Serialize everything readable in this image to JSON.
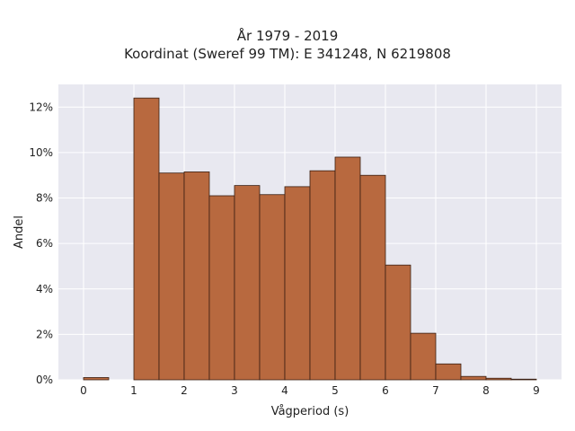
{
  "chart_data": {
    "type": "bar",
    "title": "År 1979 - 2019",
    "subtitle": "Koordinat (Sweref 99 TM): E 341248, N 6219808",
    "xlabel": "Vågperiod (s)",
    "ylabel": "Andel",
    "bin_width": 0.5,
    "bins_start": [
      0,
      0.5,
      1,
      1.5,
      2,
      2.5,
      3,
      3.5,
      4,
      4.5,
      5,
      5.5,
      6,
      6.5,
      7,
      7.5,
      8,
      8.5
    ],
    "values": [
      0.1,
      0,
      12.4,
      9.1,
      9.15,
      8.1,
      8.55,
      8.15,
      8.5,
      9.2,
      9.8,
      9.0,
      5.05,
      2.05,
      0.7,
      0.15,
      0.07,
      0.03
    ],
    "xlim": [
      -0.5,
      9.5
    ],
    "ylim": [
      0,
      13
    ],
    "x_ticks": [
      "0",
      "1",
      "2",
      "3",
      "4",
      "5",
      "6",
      "7",
      "8",
      "9"
    ],
    "y_ticks": [
      "0%",
      "2%",
      "4%",
      "6%",
      "8%",
      "10%",
      "12%"
    ],
    "grid": true,
    "colors": {
      "bar_fill": "#b8693f",
      "bar_edge": "#3a1f12",
      "plot_bg": "#e8e8f0",
      "grid": "#ffffff"
    }
  }
}
